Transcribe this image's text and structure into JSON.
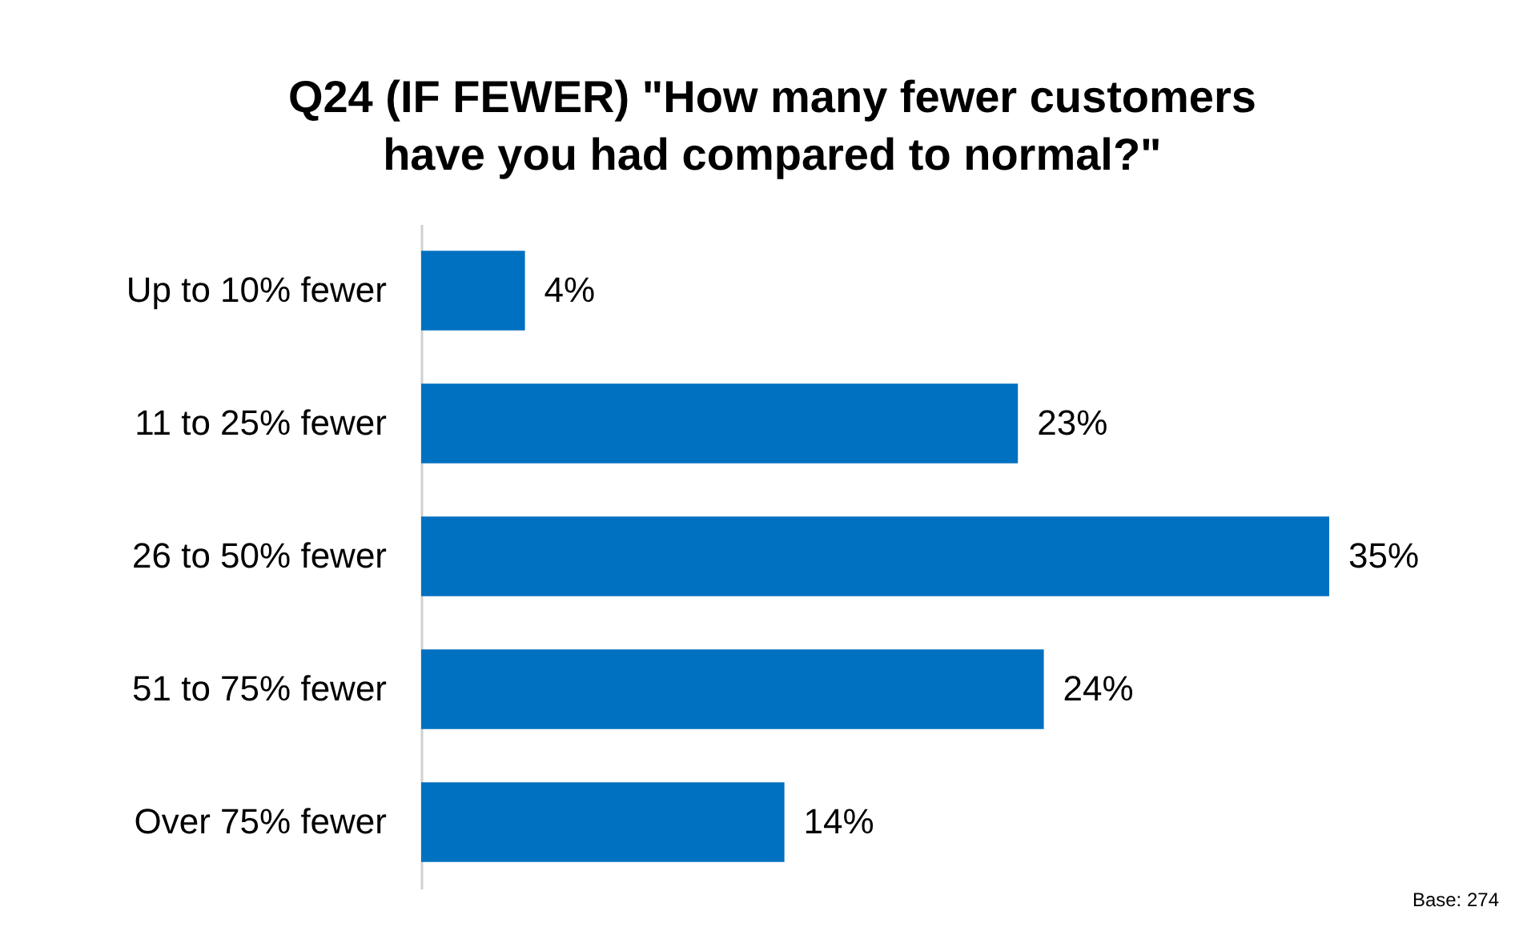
{
  "chart_data": {
    "type": "bar",
    "orientation": "horizontal",
    "title": [
      "Q24 (IF FEWER) \"How many fewer customers",
      "have you had compared to normal?\""
    ],
    "categories": [
      "Up to 10% fewer",
      "11 to 25% fewer",
      "26 to 50% fewer",
      "51 to 75% fewer",
      "Over 75% fewer"
    ],
    "values": [
      4,
      23,
      35,
      24,
      14
    ],
    "value_labels": [
      "4%",
      "23%",
      "35%",
      "24%",
      "14%"
    ],
    "color": "#0070c0",
    "annotations": [
      "Base: 274"
    ]
  }
}
